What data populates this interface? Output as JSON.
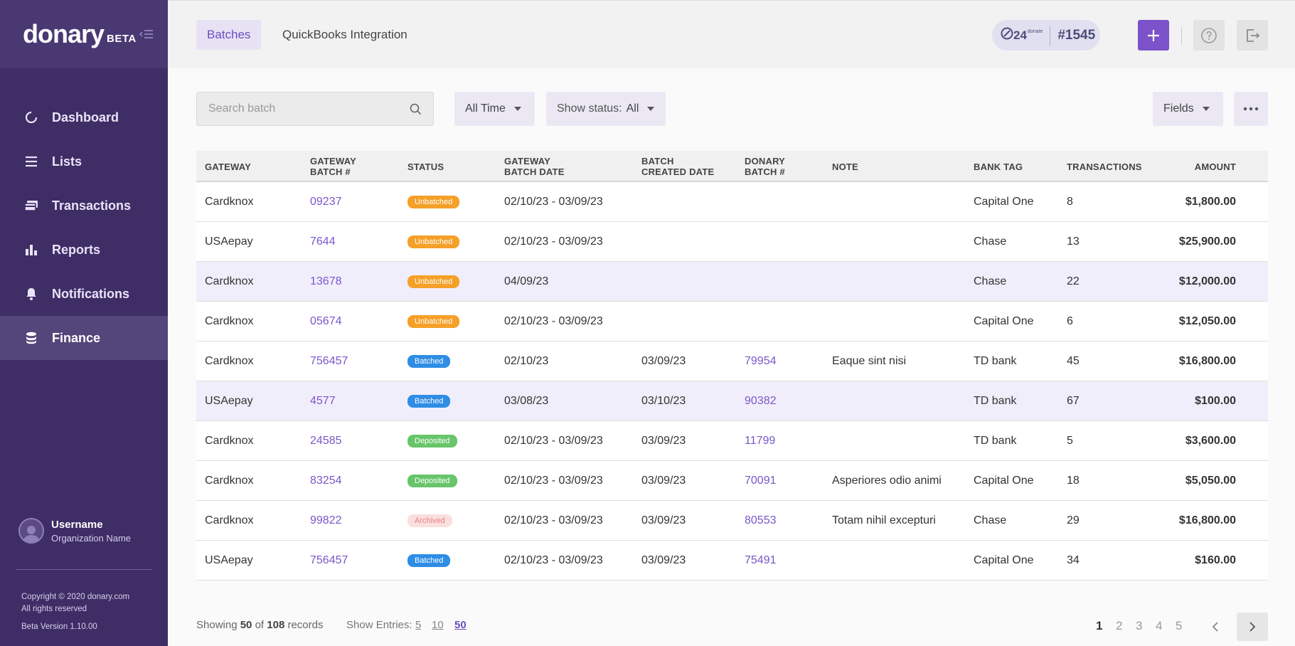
{
  "sidebar": {
    "logo": "donary",
    "beta": "BETA",
    "items": [
      {
        "label": "Dashboard"
      },
      {
        "label": "Lists"
      },
      {
        "label": "Transactions"
      },
      {
        "label": "Reports"
      },
      {
        "label": "Notifications"
      },
      {
        "label": "Finance"
      }
    ],
    "user": {
      "name": "Username",
      "org": "Organization Name"
    },
    "copyright": "Copyright © 2020 donary.com",
    "rights": "All rights reserved",
    "version": "Beta Version 1.10.00"
  },
  "header": {
    "tabs": [
      {
        "label": "Batches"
      },
      {
        "label": "QuickBooks Integration"
      }
    ],
    "donate24_logo": "24",
    "donate24_text": "donate",
    "account_number": "#1545"
  },
  "toolbar": {
    "search_placeholder": "Search batch",
    "time_filter": "All Time",
    "status_label": "Show status:",
    "status_value": "All",
    "fields_label": "Fields"
  },
  "table": {
    "headers": [
      "GATEWAY",
      "GATEWAY\nBATCH #",
      "STATUS",
      "GATEWAY\nBATCH DATE",
      "BATCH\nCREATED DATE",
      "DONARY\nBATCH #",
      "NOTE",
      "BANK TAG",
      "TRANSACTIONS",
      "AMOUNT"
    ],
    "header_lines": [
      [
        "GATEWAY"
      ],
      [
        "GATEWAY",
        "BATCH #"
      ],
      [
        "STATUS"
      ],
      [
        "GATEWAY",
        "BATCH DATE"
      ],
      [
        "BATCH",
        "CREATED DATE"
      ],
      [
        "DONARY",
        "BATCH #"
      ],
      [
        "NOTE"
      ],
      [
        "BANK TAG"
      ],
      [
        "TRANSACTIONS"
      ],
      [
        "AMOUNT"
      ]
    ],
    "rows": [
      {
        "gateway": "Cardknox",
        "gw_batch": "09237",
        "status": "Unbatched",
        "gw_date": "02/10/23 - 03/09/23",
        "created": "",
        "donary_batch": "",
        "note": "",
        "bank": "Capital One",
        "tx": "8",
        "amount": "$1,800.00"
      },
      {
        "gateway": "USAepay",
        "gw_batch": "7644",
        "status": "Unbatched",
        "gw_date": "02/10/23 - 03/09/23",
        "created": "",
        "donary_batch": "",
        "note": "",
        "bank": "Chase",
        "tx": "13",
        "amount": "$25,900.00"
      },
      {
        "gateway": "Cardknox",
        "gw_batch": "13678",
        "status": "Unbatched",
        "gw_date": "04/09/23",
        "created": "",
        "donary_batch": "",
        "note": "",
        "bank": "Chase",
        "tx": "22",
        "amount": "$12,000.00"
      },
      {
        "gateway": "Cardknox",
        "gw_batch": "05674",
        "status": "Unbatched",
        "gw_date": "02/10/23 - 03/09/23",
        "created": "",
        "donary_batch": "",
        "note": "",
        "bank": "Capital One",
        "tx": "6",
        "amount": "$12,050.00"
      },
      {
        "gateway": "Cardknox",
        "gw_batch": "756457",
        "status": "Batched",
        "gw_date": "02/10/23",
        "created": "03/09/23",
        "donary_batch": "79954",
        "note": "Eaque sint nisi",
        "bank": "TD bank",
        "tx": "45",
        "amount": "$16,800.00"
      },
      {
        "gateway": "USAepay",
        "gw_batch": "4577",
        "status": "Batched",
        "gw_date": "03/08/23",
        "created": "03/10/23",
        "donary_batch": "90382",
        "note": "",
        "bank": "TD bank",
        "tx": "67",
        "amount": "$100.00"
      },
      {
        "gateway": "Cardknox",
        "gw_batch": "24585",
        "status": "Deposited",
        "gw_date": "02/10/23 - 03/09/23",
        "created": "03/09/23",
        "donary_batch": "11799",
        "note": "",
        "bank": "TD bank",
        "tx": "5",
        "amount": "$3,600.00"
      },
      {
        "gateway": "Cardknox",
        "gw_batch": "83254",
        "status": "Deposited",
        "gw_date": "02/10/23 - 03/09/23",
        "created": "03/09/23",
        "donary_batch": "70091",
        "note": "Asperiores odio animi",
        "bank": "Capital One",
        "tx": "18",
        "amount": "$5,050.00"
      },
      {
        "gateway": "Cardknox",
        "gw_batch": "99822",
        "status": "Archived",
        "gw_date": "02/10/23 - 03/09/23",
        "created": "03/09/23",
        "donary_batch": "80553",
        "note": "Totam nihil excepturi",
        "bank": "Chase",
        "tx": "29",
        "amount": "$16,800.00"
      },
      {
        "gateway": "USAepay",
        "gw_batch": "756457",
        "status": "Batched",
        "gw_date": "02/10/23 - 03/09/23",
        "created": "03/09/23",
        "donary_batch": "75491",
        "note": "",
        "bank": "Capital One",
        "tx": "34",
        "amount": "$160.00"
      }
    ],
    "highlighted_rows": [
      2,
      5
    ]
  },
  "footer": {
    "showing_prefix": "Showing",
    "showing_count": "50",
    "showing_of": "of",
    "showing_total": "108",
    "showing_suffix": "records",
    "entries_label": "Show Entries:",
    "entries": [
      "5",
      "10",
      "50"
    ],
    "selected_entries": "50",
    "pages": [
      "1",
      "2",
      "3",
      "4",
      "5"
    ],
    "current_page": "1"
  },
  "colors": {
    "sidebar": "#3f2d66",
    "accent": "#7b52c9",
    "link": "#7a56c8",
    "unbatched": "#f5a028",
    "batched": "#2e8de4",
    "deposited": "#67c56a",
    "archived": "#fbdede"
  }
}
